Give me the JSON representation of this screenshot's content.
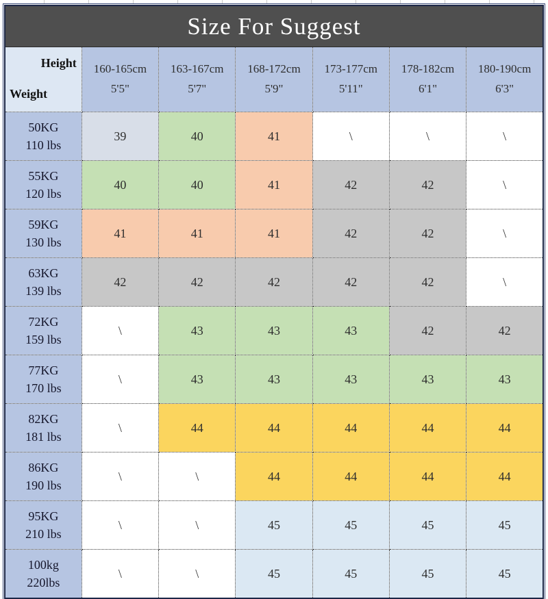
{
  "title": "Size For Suggest",
  "corner": {
    "top": "Height",
    "bottom": "Weight"
  },
  "columns": [
    {
      "line1": "160-165cm",
      "line2": "5'5\""
    },
    {
      "line1": "163-167cm",
      "line2": "5'7\""
    },
    {
      "line1": "168-172cm",
      "line2": "5'9\""
    },
    {
      "line1": "173-177cm",
      "line2": "5'11\""
    },
    {
      "line1": "178-182cm",
      "line2": "6'1\""
    },
    {
      "line1": "180-190cm",
      "line2": "6'3\""
    }
  ],
  "rows": [
    {
      "kg": "50KG",
      "lbs": "110 lbs",
      "cells": [
        {
          "v": "39",
          "c": "bluegray"
        },
        {
          "v": "40",
          "c": "green"
        },
        {
          "v": "41",
          "c": "salmon"
        },
        {
          "v": "\\",
          "c": "white"
        },
        {
          "v": "\\",
          "c": "white"
        },
        {
          "v": "\\",
          "c": "white"
        }
      ]
    },
    {
      "kg": "55KG",
      "lbs": "120 lbs",
      "cells": [
        {
          "v": "40",
          "c": "green"
        },
        {
          "v": "40",
          "c": "green"
        },
        {
          "v": "41",
          "c": "salmon"
        },
        {
          "v": "42",
          "c": "gray"
        },
        {
          "v": "42",
          "c": "gray"
        },
        {
          "v": "\\",
          "c": "white"
        }
      ]
    },
    {
      "kg": "59KG",
      "lbs": "130 lbs",
      "cells": [
        {
          "v": "41",
          "c": "salmon"
        },
        {
          "v": "41",
          "c": "salmon"
        },
        {
          "v": "41",
          "c": "salmon"
        },
        {
          "v": "42",
          "c": "gray"
        },
        {
          "v": "42",
          "c": "gray"
        },
        {
          "v": "\\",
          "c": "white"
        }
      ]
    },
    {
      "kg": "63KG",
      "lbs": "139 lbs",
      "cells": [
        {
          "v": "42",
          "c": "gray"
        },
        {
          "v": "42",
          "c": "gray"
        },
        {
          "v": "42",
          "c": "gray"
        },
        {
          "v": "42",
          "c": "gray"
        },
        {
          "v": "42",
          "c": "gray"
        },
        {
          "v": "\\",
          "c": "white"
        }
      ]
    },
    {
      "kg": "72KG",
      "lbs": "159 lbs",
      "cells": [
        {
          "v": "\\",
          "c": "white"
        },
        {
          "v": "43",
          "c": "green"
        },
        {
          "v": "43",
          "c": "green"
        },
        {
          "v": "43",
          "c": "green"
        },
        {
          "v": "42",
          "c": "gray"
        },
        {
          "v": "42",
          "c": "gray"
        }
      ]
    },
    {
      "kg": "77KG",
      "lbs": "170 lbs",
      "cells": [
        {
          "v": "\\",
          "c": "white"
        },
        {
          "v": "43",
          "c": "green"
        },
        {
          "v": "43",
          "c": "green"
        },
        {
          "v": "43",
          "c": "green"
        },
        {
          "v": "43",
          "c": "green"
        },
        {
          "v": "43",
          "c": "green"
        }
      ]
    },
    {
      "kg": "82KG",
      "lbs": "181 lbs",
      "cells": [
        {
          "v": "\\",
          "c": "white"
        },
        {
          "v": "44",
          "c": "yellow"
        },
        {
          "v": "44",
          "c": "yellow"
        },
        {
          "v": "44",
          "c": "yellow"
        },
        {
          "v": "44",
          "c": "yellow"
        },
        {
          "v": "44",
          "c": "yellow"
        }
      ]
    },
    {
      "kg": "86KG",
      "lbs": "190 lbs",
      "cells": [
        {
          "v": "\\",
          "c": "white"
        },
        {
          "v": "\\",
          "c": "white"
        },
        {
          "v": "44",
          "c": "yellow"
        },
        {
          "v": "44",
          "c": "yellow"
        },
        {
          "v": "44",
          "c": "yellow"
        },
        {
          "v": "44",
          "c": "yellow"
        }
      ]
    },
    {
      "kg": "95KG",
      "lbs": "210 lbs",
      "cells": [
        {
          "v": "\\",
          "c": "white"
        },
        {
          "v": "\\",
          "c": "white"
        },
        {
          "v": "45",
          "c": "lightblue"
        },
        {
          "v": "45",
          "c": "lightblue"
        },
        {
          "v": "45",
          "c": "lightblue"
        },
        {
          "v": "45",
          "c": "lightblue"
        }
      ]
    },
    {
      "kg": "100kg",
      "lbs": "220lbs",
      "cells": [
        {
          "v": "\\",
          "c": "white"
        },
        {
          "v": "\\",
          "c": "white"
        },
        {
          "v": "45",
          "c": "lightblue"
        },
        {
          "v": "45",
          "c": "lightblue"
        },
        {
          "v": "45",
          "c": "lightblue"
        },
        {
          "v": "45",
          "c": "lightblue"
        }
      ]
    }
  ],
  "colors": {
    "title_bg": "#4f4f4f",
    "title_text": "#ffffff",
    "header_blue": "#b6c5e2",
    "corner_bg": "#dde7f3",
    "bluegray": "#d8dee8",
    "green": "#c5e0b4",
    "salmon": "#f8cbad",
    "gray": "#c7c7c7",
    "yellow": "#fbd55e",
    "lightblue": "#dbe8f3",
    "white": "#ffffff"
  }
}
